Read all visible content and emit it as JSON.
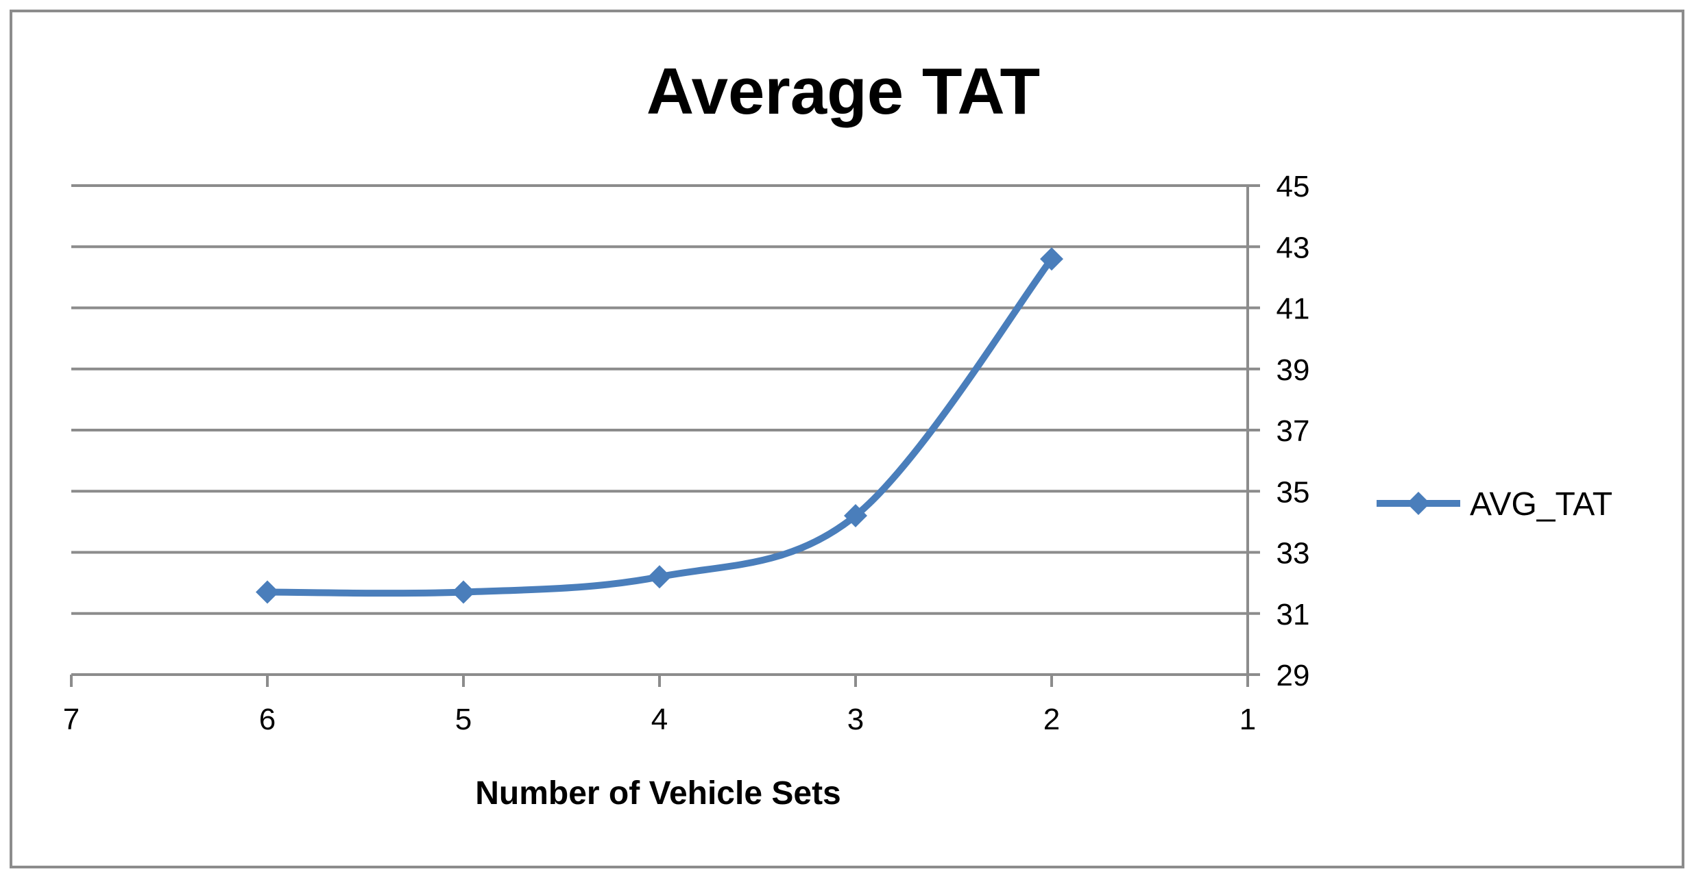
{
  "chart_data": {
    "type": "line",
    "title": "Average TAT",
    "xlabel": "Number of Vehicle Sets",
    "ylabel": "",
    "x_reversed": true,
    "xlim": [
      1,
      7
    ],
    "ylim": [
      29,
      45
    ],
    "x_ticks": [
      7,
      6,
      5,
      4,
      3,
      2,
      1
    ],
    "y_ticks": [
      29,
      31,
      33,
      35,
      37,
      39,
      41,
      43,
      45
    ],
    "y_axis_position": "right",
    "grid": true,
    "smooth": true,
    "legend_position": "right",
    "series": [
      {
        "name": "AVG_TAT",
        "color": "#4a7ebb",
        "marker": "diamond",
        "x": [
          6,
          5,
          4,
          3,
          2
        ],
        "values": [
          31.7,
          31.7,
          32.2,
          34.2,
          42.6
        ]
      }
    ]
  }
}
